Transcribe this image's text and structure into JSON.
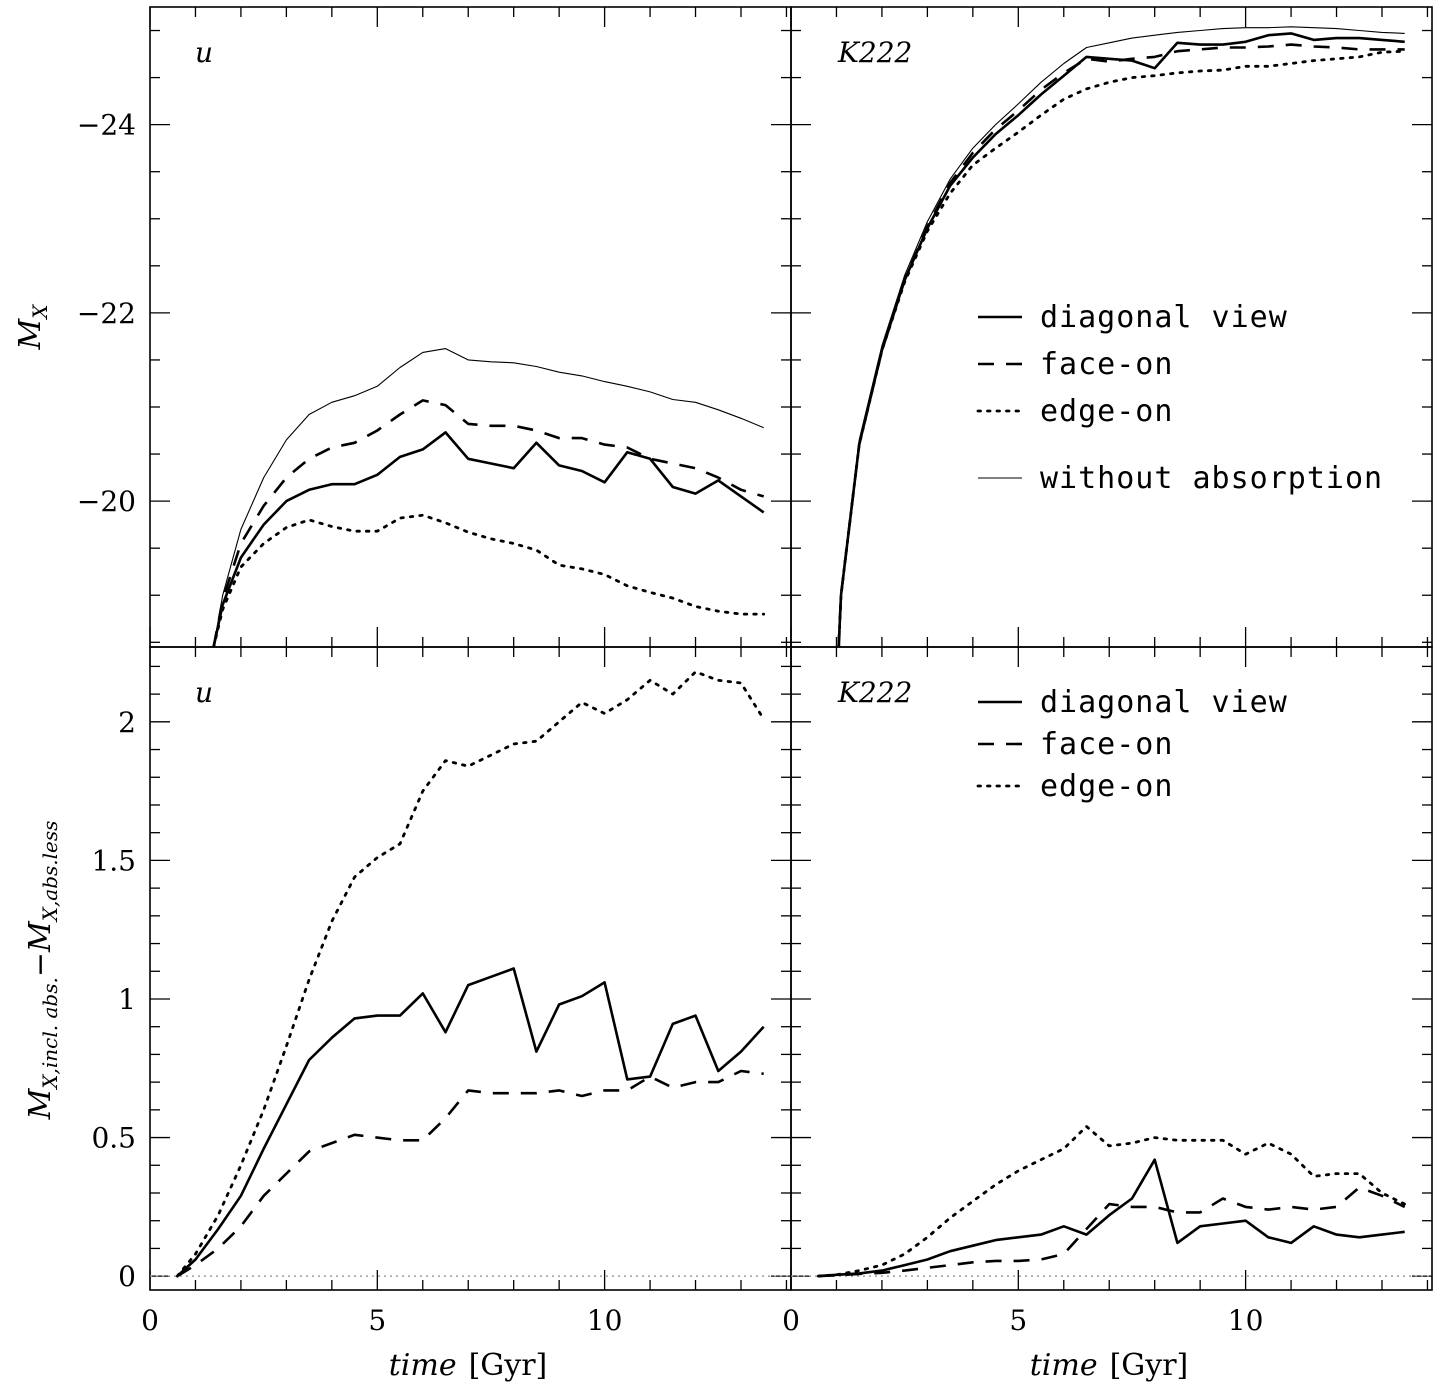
{
  "chart_data": [
    {
      "type": "line",
      "panel": "top-left",
      "band_label": "u",
      "ylabel": "M_X",
      "xlim": [
        0,
        14.1
      ],
      "ylim": [
        -18.45,
        -25.25
      ],
      "yticks": [
        -20,
        -22,
        -24
      ],
      "ytick_labels": [
        "−20",
        "−22",
        "−24"
      ],
      "xticks": [
        0,
        5,
        10
      ],
      "series": [
        {
          "name": "diagonal view",
          "style": "solid-thick",
          "x": [
            1.4,
            1.6,
            2,
            2.5,
            3,
            3.5,
            4,
            4.5,
            5,
            5.5,
            6,
            6.5,
            7,
            7.5,
            8,
            8.5,
            9,
            9.5,
            10,
            10.5,
            11,
            11.5,
            12,
            12.5,
            13,
            13.5
          ],
          "y": [
            -18.45,
            -18.9,
            -19.4,
            -19.75,
            -20.0,
            -20.12,
            -20.18,
            -20.18,
            -20.28,
            -20.47,
            -20.55,
            -20.73,
            -20.45,
            -20.4,
            -20.35,
            -20.62,
            -20.38,
            -20.32,
            -20.2,
            -20.52,
            -20.45,
            -20.15,
            -20.08,
            -20.22,
            -20.05,
            -19.88
          ]
        },
        {
          "name": "face-on",
          "style": "dashed",
          "x": [
            1.4,
            1.6,
            2,
            2.5,
            3,
            3.5,
            4,
            4.5,
            5,
            5.5,
            6,
            6.5,
            7,
            7.5,
            8,
            8.5,
            9,
            9.5,
            10,
            10.5,
            11,
            11.5,
            12,
            12.5,
            13,
            13.5
          ],
          "y": [
            -18.45,
            -18.95,
            -19.55,
            -19.95,
            -20.25,
            -20.45,
            -20.57,
            -20.62,
            -20.75,
            -20.92,
            -21.07,
            -21.02,
            -20.82,
            -20.8,
            -20.8,
            -20.75,
            -20.67,
            -20.67,
            -20.6,
            -20.57,
            -20.45,
            -20.4,
            -20.35,
            -20.25,
            -20.12,
            -20.05
          ]
        },
        {
          "name": "edge-on",
          "style": "dotted",
          "x": [
            1.4,
            1.6,
            2,
            2.5,
            3,
            3.5,
            4,
            4.5,
            5,
            5.5,
            6,
            6.5,
            7,
            7.5,
            8,
            8.5,
            9,
            9.5,
            10,
            10.5,
            11,
            11.5,
            12,
            12.5,
            13,
            13.5
          ],
          "y": [
            -18.45,
            -18.85,
            -19.3,
            -19.55,
            -19.72,
            -19.8,
            -19.73,
            -19.68,
            -19.68,
            -19.82,
            -19.85,
            -19.77,
            -19.67,
            -19.6,
            -19.55,
            -19.48,
            -19.32,
            -19.28,
            -19.22,
            -19.1,
            -19.03,
            -18.97,
            -18.88,
            -18.83,
            -18.8,
            -18.8
          ]
        },
        {
          "name": "without absorption",
          "style": "solid-thin",
          "x": [
            1.4,
            1.6,
            2,
            2.5,
            3,
            3.5,
            4,
            4.5,
            5,
            5.5,
            6,
            6.5,
            7,
            7.5,
            8,
            8.5,
            9,
            9.5,
            10,
            10.5,
            11,
            11.5,
            12,
            12.5,
            13,
            13.5
          ],
          "y": [
            -18.45,
            -19.0,
            -19.7,
            -20.25,
            -20.65,
            -20.92,
            -21.05,
            -21.12,
            -21.22,
            -21.42,
            -21.58,
            -21.62,
            -21.5,
            -21.48,
            -21.47,
            -21.43,
            -21.37,
            -21.33,
            -21.27,
            -21.22,
            -21.16,
            -21.08,
            -21.05,
            -20.97,
            -20.88,
            -20.78
          ]
        }
      ]
    },
    {
      "type": "line",
      "panel": "top-right",
      "band_label": "K222",
      "xlim": [
        0,
        14.1
      ],
      "ylim": [
        -18.45,
        -25.25
      ],
      "yticks": [
        -20,
        -22,
        -24
      ],
      "xticks": [
        0,
        5,
        10
      ],
      "series": [
        {
          "name": "diagonal view",
          "style": "solid-thick",
          "x": [
            1.05,
            1.1,
            1.5,
            2,
            2.5,
            3,
            3.5,
            4,
            4.5,
            5,
            5.5,
            6,
            6.5,
            7,
            7.5,
            8,
            8.5,
            9,
            9.5,
            10,
            10.5,
            11,
            11.5,
            12,
            12.5,
            13,
            13.5
          ],
          "y": [
            -18.45,
            -19.0,
            -20.6,
            -21.6,
            -22.35,
            -22.9,
            -23.35,
            -23.65,
            -23.9,
            -24.1,
            -24.32,
            -24.52,
            -24.72,
            -24.7,
            -24.68,
            -24.6,
            -24.87,
            -24.85,
            -24.85,
            -24.88,
            -24.95,
            -24.97,
            -24.9,
            -24.92,
            -24.92,
            -24.9,
            -24.88
          ]
        },
        {
          "name": "face-on",
          "style": "dashed",
          "x": [
            1.05,
            1.1,
            1.5,
            2,
            2.5,
            3,
            3.5,
            4,
            4.5,
            5,
            5.5,
            6,
            6.5,
            7,
            7.5,
            8,
            8.5,
            9,
            9.5,
            10,
            10.5,
            11,
            11.5,
            12,
            12.5,
            13,
            13.5
          ],
          "y": [
            -18.45,
            -19.0,
            -20.6,
            -21.6,
            -22.35,
            -22.92,
            -23.38,
            -23.7,
            -23.95,
            -24.15,
            -24.37,
            -24.55,
            -24.7,
            -24.67,
            -24.7,
            -24.72,
            -24.78,
            -24.8,
            -24.82,
            -24.82,
            -24.83,
            -24.85,
            -24.83,
            -24.82,
            -24.8,
            -24.8,
            -24.8
          ]
        },
        {
          "name": "edge-on",
          "style": "dotted",
          "x": [
            1.05,
            1.1,
            1.5,
            2,
            2.5,
            3,
            3.5,
            4,
            4.5,
            5,
            5.5,
            6,
            6.5,
            7,
            7.5,
            8,
            8.5,
            9,
            9.5,
            10,
            10.5,
            11,
            11.5,
            12,
            12.5,
            13,
            13.5
          ],
          "y": [
            -18.45,
            -19.0,
            -20.6,
            -21.6,
            -22.33,
            -22.87,
            -23.27,
            -23.57,
            -23.75,
            -23.92,
            -24.1,
            -24.27,
            -24.38,
            -24.45,
            -24.5,
            -24.52,
            -24.55,
            -24.57,
            -24.58,
            -24.62,
            -24.62,
            -24.65,
            -24.68,
            -24.7,
            -24.72,
            -24.77,
            -24.78
          ]
        },
        {
          "name": "without absorption",
          "style": "solid-thin",
          "x": [
            1.05,
            1.1,
            1.5,
            2,
            2.5,
            3,
            3.5,
            4,
            4.5,
            5,
            5.5,
            6,
            6.5,
            7,
            7.5,
            8,
            8.5,
            9,
            9.5,
            10,
            10.5,
            11,
            11.5,
            12,
            12.5,
            13,
            13.5
          ],
          "y": [
            -18.45,
            -19.0,
            -20.65,
            -21.65,
            -22.4,
            -22.97,
            -23.42,
            -23.75,
            -24.0,
            -24.22,
            -24.45,
            -24.65,
            -24.82,
            -24.87,
            -24.92,
            -24.95,
            -24.98,
            -25.0,
            -25.02,
            -25.03,
            -25.03,
            -25.04,
            -25.03,
            -25.02,
            -25.0,
            -24.98,
            -24.97
          ]
        }
      ],
      "legend": {
        "placement": "center-right",
        "entries": [
          "diagonal view",
          "face-on",
          "edge-on",
          "without absorption"
        ]
      }
    },
    {
      "type": "line",
      "panel": "bottom-left",
      "band_label": "u",
      "ylabel": "M_X,incl. abs. − M_X,abs.less",
      "xlabel": "time [Gyr]",
      "xlim": [
        0,
        14.1
      ],
      "ylim": [
        -0.05,
        2.27
      ],
      "yticks": [
        0,
        0.5,
        1,
        1.5,
        2
      ],
      "ytick_labels": [
        "0",
        "0.5",
        "1",
        "1.5",
        "2"
      ],
      "xticks": [
        0,
        5,
        10
      ],
      "xtick_labels": [
        "0",
        "5",
        "10"
      ],
      "series": [
        {
          "name": "diagonal view",
          "style": "solid-thick",
          "x": [
            0.6,
            1,
            1.5,
            2,
            2.5,
            3,
            3.5,
            4,
            4.5,
            5,
            5.5,
            6,
            6.5,
            7,
            7.5,
            8,
            8.5,
            9,
            9.5,
            10,
            10.5,
            11,
            11.5,
            12,
            12.5,
            13,
            13.5
          ],
          "y": [
            0,
            0.06,
            0.17,
            0.29,
            0.46,
            0.62,
            0.78,
            0.86,
            0.93,
            0.94,
            0.94,
            1.02,
            0.88,
            1.05,
            1.08,
            1.11,
            0.81,
            0.98,
            1.01,
            1.06,
            0.71,
            0.72,
            0.91,
            0.94,
            0.74,
            0.81,
            0.9
          ]
        },
        {
          "name": "face-on",
          "style": "dashed",
          "x": [
            0.6,
            1,
            1.5,
            2,
            2.5,
            3,
            3.5,
            4,
            4.5,
            5,
            5.5,
            6,
            6.5,
            7,
            7.5,
            8,
            8.5,
            9,
            9.5,
            10,
            10.5,
            11,
            11.5,
            12,
            12.5,
            13,
            13.5
          ],
          "y": [
            0,
            0.04,
            0.1,
            0.18,
            0.29,
            0.37,
            0.45,
            0.48,
            0.51,
            0.5,
            0.49,
            0.49,
            0.57,
            0.67,
            0.66,
            0.66,
            0.66,
            0.67,
            0.65,
            0.67,
            0.67,
            0.72,
            0.68,
            0.7,
            0.7,
            0.74,
            0.73
          ]
        },
        {
          "name": "edge-on",
          "style": "dotted",
          "x": [
            0.6,
            1,
            1.5,
            2,
            2.5,
            3,
            3.5,
            4,
            4.5,
            5,
            5.5,
            6,
            6.5,
            7,
            7.5,
            8,
            8.5,
            9,
            9.5,
            10,
            10.5,
            11,
            11.5,
            12,
            12.5,
            13,
            13.5
          ],
          "y": [
            0,
            0.08,
            0.22,
            0.4,
            0.6,
            0.83,
            1.07,
            1.28,
            1.44,
            1.51,
            1.56,
            1.75,
            1.86,
            1.84,
            1.88,
            1.92,
            1.93,
            2.0,
            2.07,
            2.03,
            2.08,
            2.15,
            2.1,
            2.18,
            2.15,
            2.14,
            2.01
          ]
        }
      ],
      "reference_line": {
        "y": 0,
        "style": "gray-dotted"
      }
    },
    {
      "type": "line",
      "panel": "bottom-right",
      "band_label": "K222",
      "xlabel": "time [Gyr]",
      "xlim": [
        0,
        14.1
      ],
      "ylim": [
        -0.05,
        2.27
      ],
      "yticks": [
        0,
        0.5,
        1,
        1.5,
        2
      ],
      "xticks": [
        0,
        5,
        10
      ],
      "xtick_labels": [
        "0",
        "5",
        "10"
      ],
      "series": [
        {
          "name": "diagonal view",
          "style": "solid-thick",
          "x": [
            0.6,
            1,
            1.5,
            2,
            2.5,
            3,
            3.5,
            4,
            4.5,
            5,
            5.5,
            6,
            6.5,
            7,
            7.5,
            8,
            8.5,
            9,
            9.5,
            10,
            10.5,
            11,
            11.5,
            12,
            12.5,
            13,
            13.5
          ],
          "y": [
            0,
            0.005,
            0.01,
            0.02,
            0.04,
            0.06,
            0.09,
            0.11,
            0.13,
            0.14,
            0.15,
            0.18,
            0.15,
            0.22,
            0.28,
            0.42,
            0.12,
            0.18,
            0.19,
            0.2,
            0.14,
            0.12,
            0.18,
            0.15,
            0.14,
            0.15,
            0.16
          ]
        },
        {
          "name": "face-on",
          "style": "dashed",
          "x": [
            0.6,
            1,
            1.5,
            2,
            2.5,
            3,
            3.5,
            4,
            4.5,
            5,
            5.5,
            6,
            6.5,
            7,
            7.5,
            8,
            8.5,
            9,
            9.5,
            10,
            10.5,
            11,
            11.5,
            12,
            12.5,
            13,
            13.5
          ],
          "y": [
            0,
            0.003,
            0.008,
            0.012,
            0.02,
            0.03,
            0.04,
            0.05,
            0.055,
            0.055,
            0.06,
            0.08,
            0.17,
            0.26,
            0.25,
            0.25,
            0.23,
            0.23,
            0.28,
            0.25,
            0.24,
            0.25,
            0.24,
            0.25,
            0.32,
            0.29,
            0.25
          ]
        },
        {
          "name": "edge-on",
          "style": "dotted",
          "x": [
            0.6,
            1,
            1.5,
            2,
            2.5,
            3,
            3.5,
            4,
            4.5,
            5,
            5.5,
            6,
            6.5,
            7,
            7.5,
            8,
            8.5,
            9,
            9.5,
            10,
            10.5,
            11,
            11.5,
            12,
            12.5,
            13,
            13.5
          ],
          "y": [
            0,
            0.005,
            0.02,
            0.04,
            0.08,
            0.14,
            0.21,
            0.27,
            0.33,
            0.38,
            0.42,
            0.46,
            0.54,
            0.47,
            0.48,
            0.5,
            0.49,
            0.49,
            0.49,
            0.44,
            0.48,
            0.44,
            0.36,
            0.37,
            0.37,
            0.3,
            0.26
          ]
        }
      ],
      "reference_line": {
        "y": 0,
        "style": "gray-dotted"
      },
      "legend": {
        "placement": "top-right",
        "entries": [
          "diagonal view",
          "face-on",
          "edge-on"
        ]
      }
    }
  ],
  "axis_text": {
    "time_label_italic": "time",
    "time_label_unit": "[Gyr]",
    "mx_main": "M",
    "mx_sub": "X",
    "diff_main1": "M",
    "diff_sub1": "X,incl. abs.",
    "diff_minus": "−",
    "diff_main2": "M",
    "diff_sub2": "X,abs.less"
  },
  "colors": {
    "line": "#000000",
    "reference_line": "#888888",
    "background": "#ffffff"
  }
}
